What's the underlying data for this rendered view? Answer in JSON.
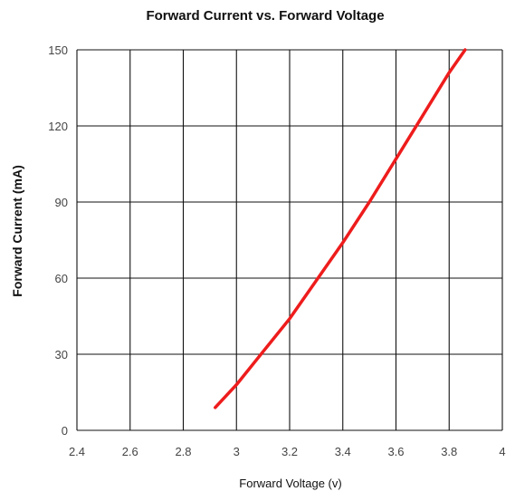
{
  "chart_data": {
    "type": "line",
    "title": "Forward Current vs. Forward Voltage",
    "xlabel": "Forward Voltage  (v)",
    "ylabel": "Forward Current (mA)",
    "xlim": [
      2.4,
      4.0
    ],
    "ylim": [
      0,
      150
    ],
    "x_ticks": [
      "2.4",
      "2.6",
      "2.8",
      "3",
      "3.2",
      "3.4",
      "3.6",
      "3.8",
      "4"
    ],
    "y_ticks": [
      "0",
      "30",
      "60",
      "90",
      "120",
      "150"
    ],
    "grid": true,
    "series": [
      {
        "color": "#ee1c1c",
        "x": [
          2.92,
          3.0,
          3.1,
          3.2,
          3.3,
          3.4,
          3.5,
          3.6,
          3.7,
          3.8,
          3.86
        ],
        "y": [
          9,
          18,
          31,
          44,
          59,
          74,
          90,
          107,
          124,
          141,
          150
        ]
      }
    ]
  }
}
